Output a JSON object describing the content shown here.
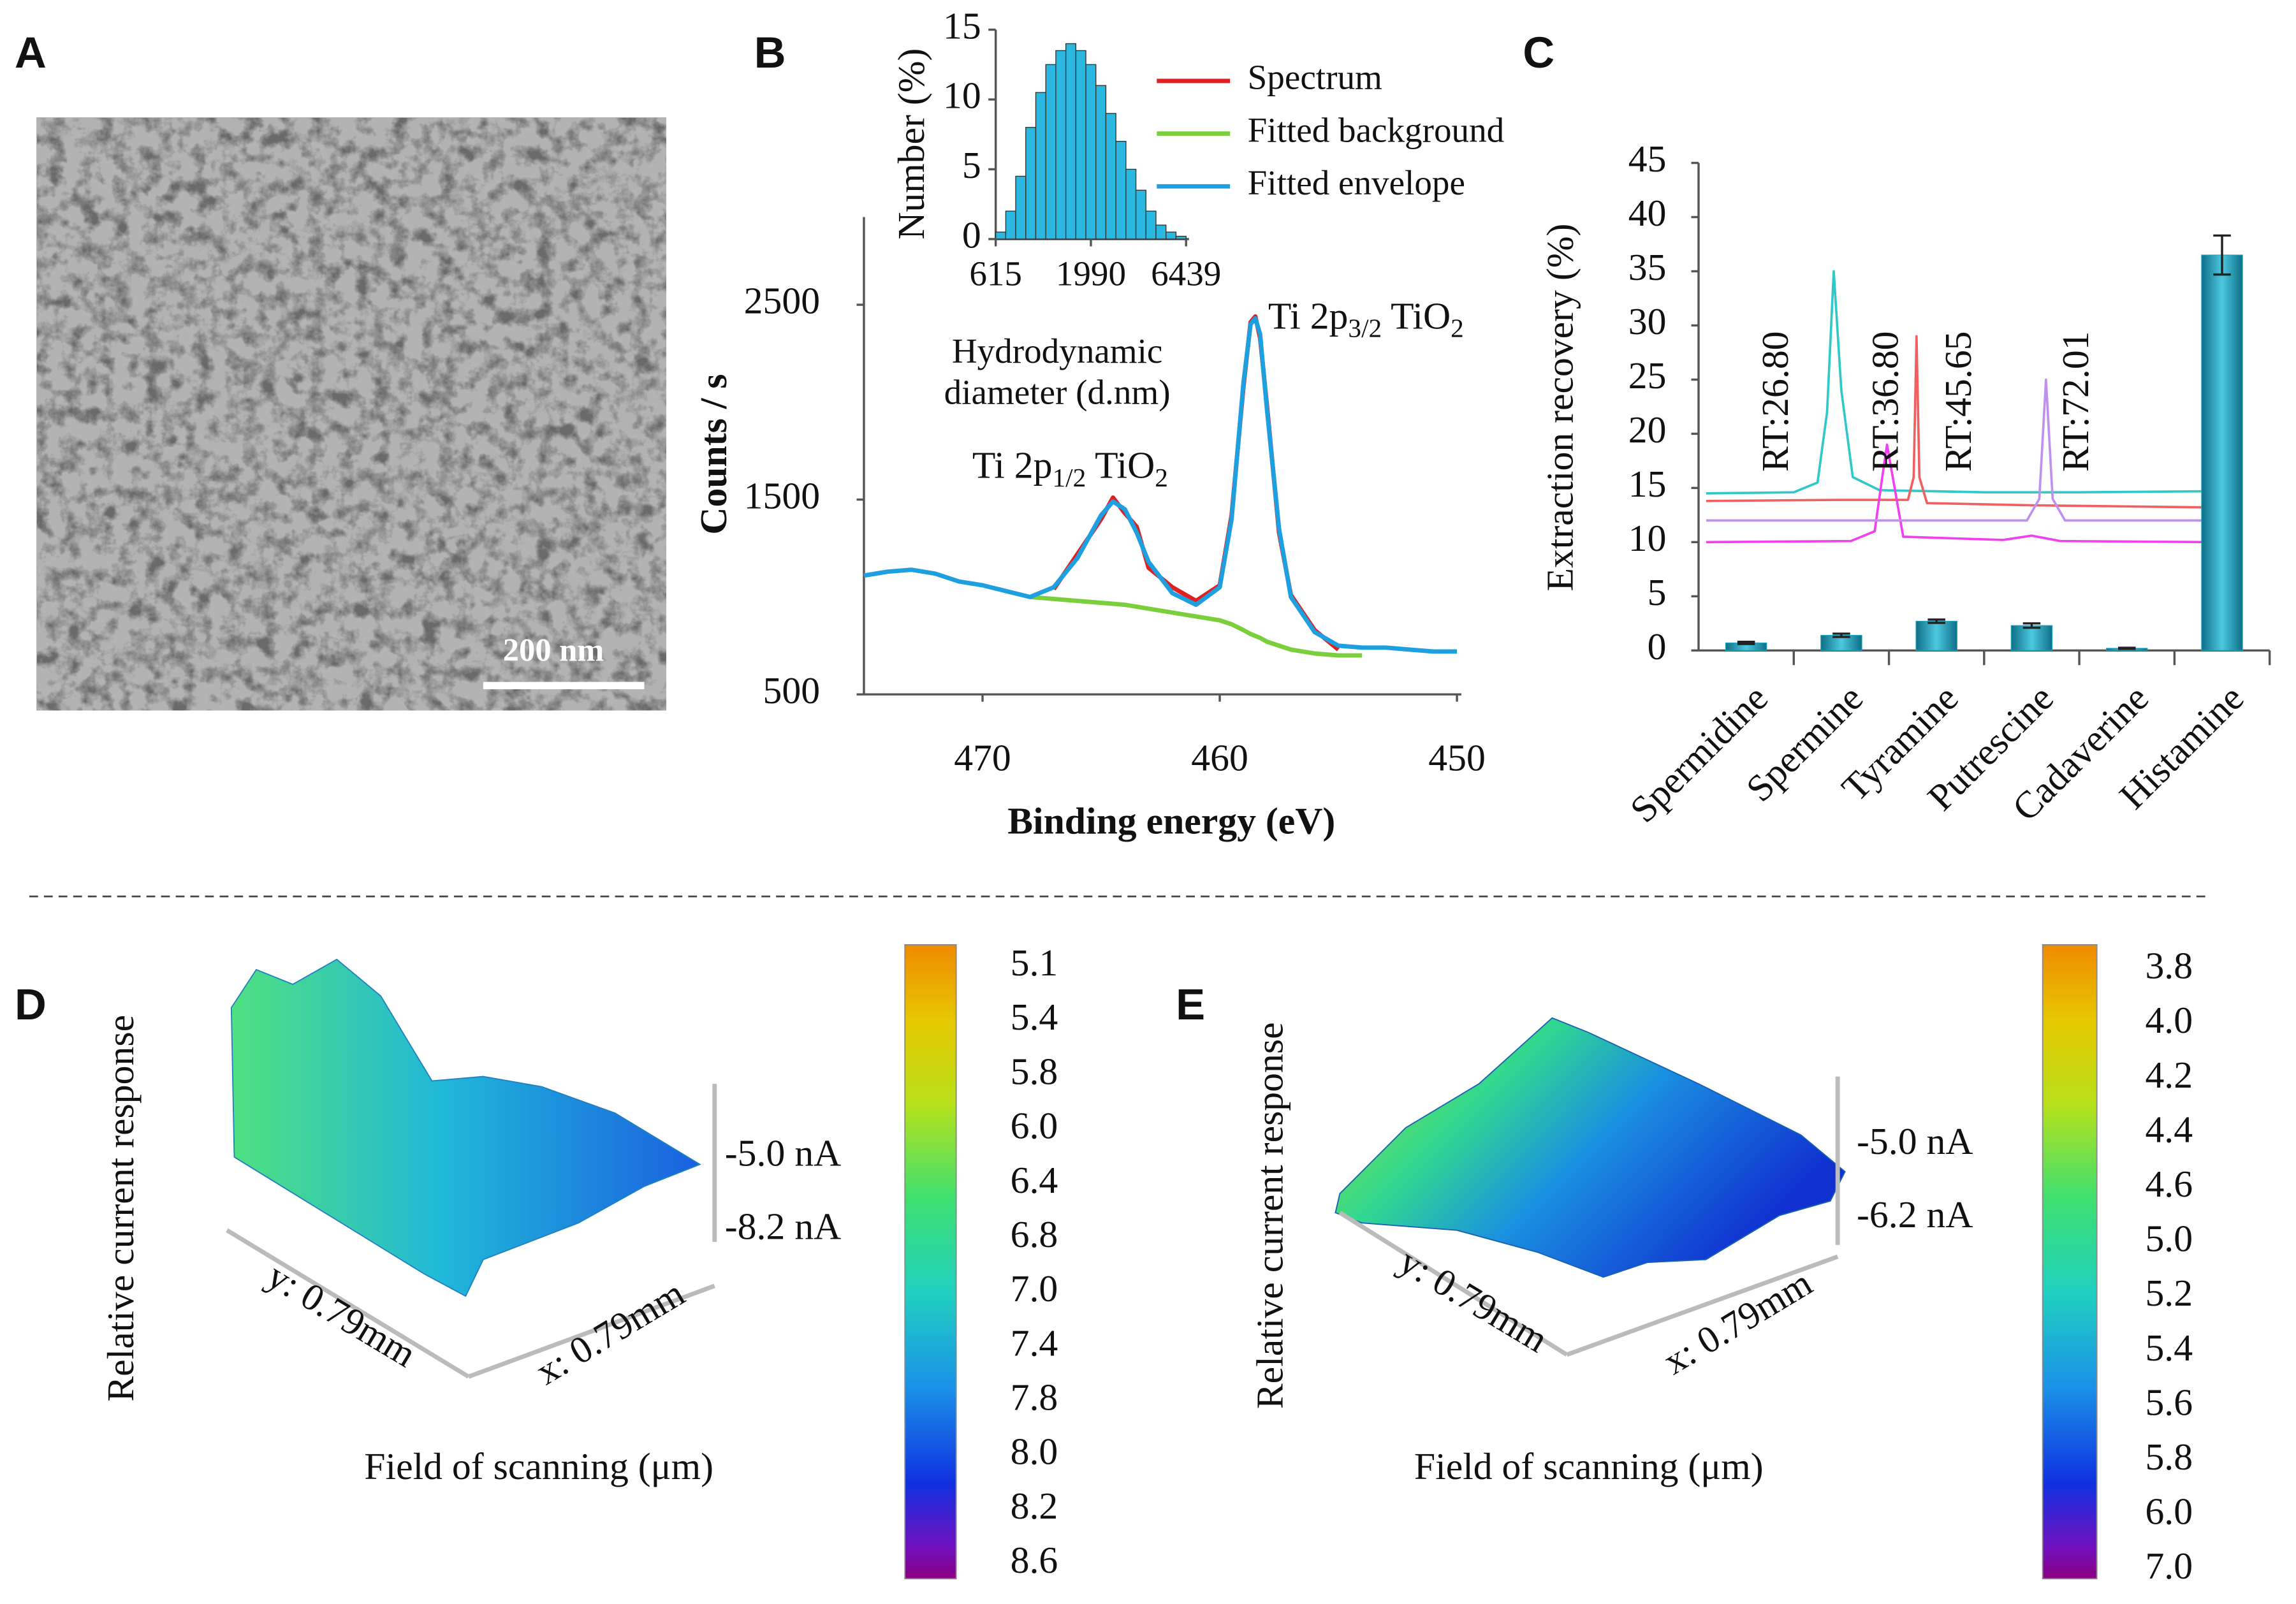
{
  "panel_labels": [
    "A",
    "B",
    "C",
    "D",
    "E"
  ],
  "panel_a": {
    "scale_bar": "200 nm"
  },
  "chart_data": [
    {
      "type": "histogram",
      "ylabel": "Number (%)",
      "xlabel": [
        "Hydrodynamic",
        "diameter (d.nm)"
      ],
      "bins": [
        615,
        696,
        787,
        891,
        1008,
        1141,
        1291,
        1461,
        1653,
        1870,
        2116,
        2394,
        2709,
        3066,
        3469,
        3925,
        4441,
        5026,
        5687,
        6439
      ],
      "counts": [
        0.5,
        2,
        4.5,
        8,
        10.5,
        12.5,
        13.5,
        14,
        13.5,
        12.5,
        11,
        9,
        7,
        5,
        3.5,
        2,
        1,
        0.5,
        0.2
      ],
      "color": "#2bb8e0",
      "xscale": "log",
      "xlim": [
        615,
        6439
      ],
      "xticks": [
        615,
        1990,
        6439
      ],
      "ylim": [
        0,
        15
      ],
      "yticks": [
        0,
        5,
        10,
        15
      ]
    },
    {
      "type": "line",
      "xlabel": "Binding energy (eV)",
      "ylabel": "Counts / s",
      "legend": "upper right",
      "x": [
        475,
        474,
        473,
        472,
        471,
        470,
        469,
        468,
        467,
        466,
        465,
        464.5,
        464,
        463.5,
        463,
        462,
        461,
        460,
        459.5,
        459,
        458.7,
        458.5,
        458.3,
        458,
        457.5,
        457,
        456,
        455,
        454,
        453,
        452,
        451,
        450
      ],
      "series": [
        {
          "name": "Spectrum",
          "color": "#e02020",
          "values": [
            null,
            null,
            null,
            null,
            null,
            null,
            null,
            null,
            1040,
            1220,
            1400,
            1510,
            1430,
            1360,
            1150,
            1050,
            980,
            1060,
            1420,
            2080,
            2410,
            2440,
            2330,
            1970,
            1330,
            1010,
            830,
            730,
            null,
            null,
            null,
            null,
            null
          ]
        },
        {
          "name": "Fitted background",
          "color": "#7ccf3c",
          "values": [
            null,
            null,
            null,
            null,
            null,
            null,
            null,
            1000,
            990,
            980,
            970,
            965,
            960,
            950,
            940,
            920,
            900,
            880,
            860,
            830,
            810,
            800,
            790,
            770,
            750,
            730,
            710,
            700,
            700,
            null,
            null,
            null,
            null
          ]
        },
        {
          "name": "Fitted envelope",
          "color": "#1ea0e0",
          "values": [
            1110,
            1130,
            1140,
            1120,
            1080,
            1060,
            1030,
            1000,
            1050,
            1200,
            1420,
            1490,
            1450,
            1330,
            1180,
            1020,
            960,
            1050,
            1400,
            2100,
            2400,
            2430,
            2350,
            1950,
            1350,
            1000,
            820,
            750,
            740,
            740,
            730,
            720,
            720
          ]
        }
      ],
      "annotations": [
        [
          "Ti 2p",
          "1/2",
          " TiO",
          "2"
        ],
        [
          "Ti 2p",
          "3/2",
          " TiO",
          "2"
        ]
      ],
      "xlim": [
        475,
        450
      ],
      "xticks": [
        470,
        460,
        450
      ],
      "ylim": [
        500,
        2950
      ],
      "yticks": [
        500,
        1500,
        2500
      ]
    },
    {
      "type": "bar",
      "ylabel": "Extraction recovery (%)",
      "categories": [
        "Spermidine",
        "Spermine",
        "Tyramine",
        "Putrescine",
        "Cadaverine",
        "Histamine"
      ],
      "values": [
        0.7,
        1.4,
        2.7,
        2.3,
        0.2,
        36.5
      ],
      "errors": [
        0.1,
        0.15,
        0.15,
        0.2,
        0.05,
        1.8
      ],
      "color": "#1fa2bd",
      "ylim": [
        0,
        45
      ],
      "yticks": [
        0,
        5,
        10,
        15,
        20,
        25,
        30,
        35,
        40,
        45
      ],
      "traces": [
        {
          "color": "#30c8c8",
          "x": [
            0.08,
            1.0,
            1.25,
            1.35,
            1.42,
            1.5,
            1.62,
            1.9,
            3,
            4,
            5.4
          ],
          "values": [
            14.5,
            14.6,
            15.5,
            22,
            35,
            24,
            16,
            14.8,
            14.6,
            14.6,
            14.7
          ]
        },
        {
          "color": "#f06060",
          "x": [
            0.08,
            1.5,
            2.2,
            2.26,
            2.29,
            2.32,
            2.4,
            3.5,
            5.4
          ],
          "values": [
            13.8,
            13.9,
            13.9,
            16,
            29,
            16,
            13.6,
            13.4,
            13.2
          ]
        },
        {
          "color": "#f040f0",
          "x": [
            0.08,
            1.6,
            1.85,
            1.93,
            1.98,
            2.04,
            2.15,
            3.2,
            3.5,
            3.8,
            5.4
          ],
          "values": [
            10,
            10.1,
            11,
            16,
            19,
            16,
            10.5,
            10.2,
            10.6,
            10.1,
            10
          ]
        },
        {
          "color": "#c090f0",
          "x": [
            0.08,
            3.45,
            3.58,
            3.65,
            3.72,
            3.85,
            5.5
          ],
          "values": [
            12,
            12,
            14,
            25,
            14,
            12,
            12
          ]
        }
      ],
      "annotations": [
        "RT:26.80",
        "RT:36.80",
        "RT:45.65",
        "RT:72.01"
      ]
    }
  ],
  "panel_d": {
    "z_labels": [
      "-5.0 nA",
      "-8.2 nA"
    ],
    "y_axis": "y: 0.79mm",
    "x_axis": "x: 0.79mm",
    "ylabel": "Relative current response",
    "xlabel": "Field of scanning (μm)",
    "colorbar": [
      "5.1",
      "5.4",
      "5.8",
      "6.0",
      "6.4",
      "6.8",
      "7.0",
      "7.4",
      "7.8",
      "8.0",
      "8.2",
      "8.6"
    ]
  },
  "panel_e": {
    "z_labels": [
      "-5.0 nA",
      "-6.2 nA"
    ],
    "y_axis": "y: 0.79mm",
    "x_axis": "x: 0.79mm",
    "ylabel": "Relative current response",
    "xlabel": "Field of scanning (μm)",
    "colorbar": [
      "3.8",
      "4.0",
      "4.2",
      "4.4",
      "4.6",
      "5.0",
      "5.2",
      "5.4",
      "5.6",
      "5.8",
      "6.0",
      "7.0"
    ]
  }
}
